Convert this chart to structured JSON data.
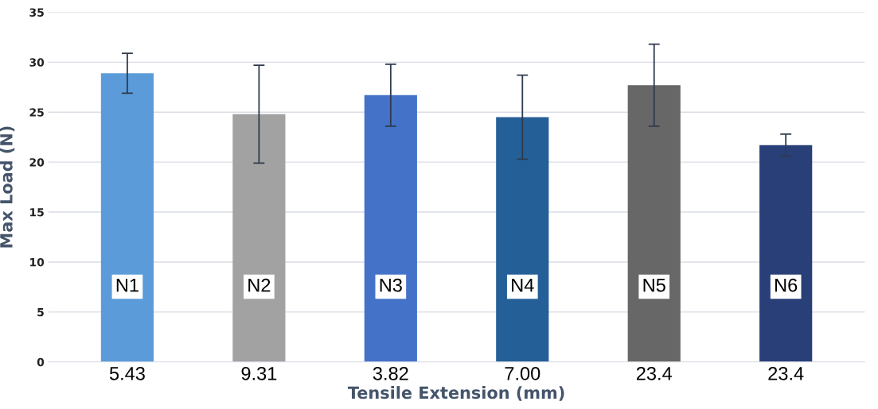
{
  "chart_data": {
    "type": "bar",
    "xlabel": "Tensile Extension (mm)",
    "ylabel": "Max Load (N)",
    "categories": [
      "5.43",
      "9.31",
      "3.82",
      "7.00",
      "23.4",
      "23.4"
    ],
    "values": [
      28.9,
      24.8,
      26.7,
      24.5,
      27.7,
      21.7
    ],
    "errors": [
      2.0,
      4.9,
      3.1,
      4.2,
      4.1,
      1.1
    ],
    "colors": [
      "#5b9bd9",
      "#a2a2a2",
      "#4472c8",
      "#255f97",
      "#676767",
      "#283f78"
    ],
    "ylim": [
      0,
      35
    ],
    "yticks": [
      0,
      5,
      10,
      15,
      20,
      25,
      30,
      35
    ],
    "grid": "y",
    "annotations": [
      "N1",
      "N2",
      "N3",
      "N4",
      "N5",
      "N6"
    ]
  }
}
